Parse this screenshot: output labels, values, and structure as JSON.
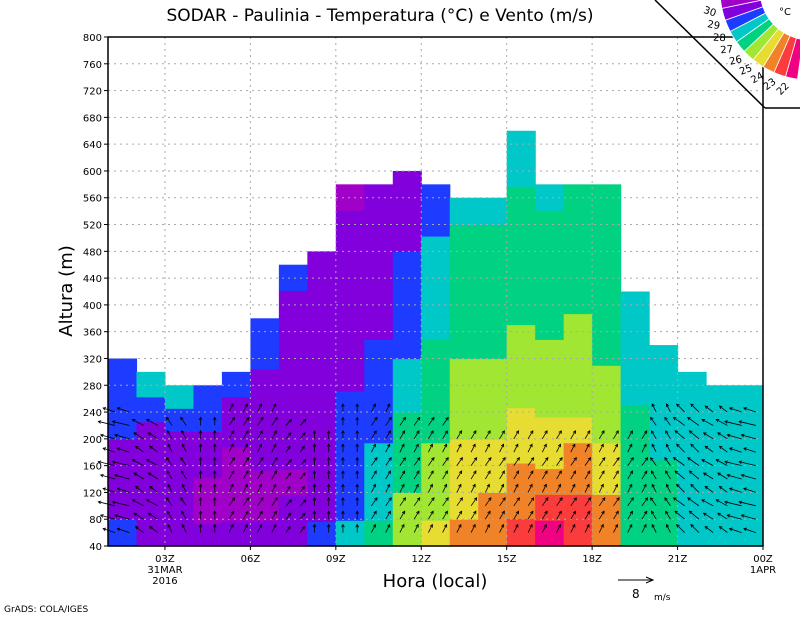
{
  "chart_data": {
    "type": "heatmap",
    "title": "SODAR - Paulinia - Temperatura (°C) e Vento (m/s)",
    "xlabel": "Hora (local)",
    "ylabel": "Altura (m)",
    "ylim": [
      40,
      800
    ],
    "xlim_hours": [
      1,
      24
    ],
    "yticks": [
      "40",
      "80",
      "120",
      "160",
      "200",
      "240",
      "280",
      "320",
      "360",
      "400",
      "440",
      "480",
      "520",
      "560",
      "600",
      "640",
      "680",
      "720",
      "760",
      "800"
    ],
    "xticks": [
      {
        "hour": 3,
        "label": "03Z",
        "sub1": "31MAR",
        "sub2": "2016"
      },
      {
        "hour": 6,
        "label": "06Z"
      },
      {
        "hour": 9,
        "label": "09Z"
      },
      {
        "hour": 12,
        "label": "12Z"
      },
      {
        "hour": 15,
        "label": "15Z"
      },
      {
        "hour": 18,
        "label": "18Z"
      },
      {
        "hour": 21,
        "label": "21Z"
      },
      {
        "hour": 24,
        "label": "00Z",
        "sub1": "1APR"
      }
    ],
    "grid": true,
    "legend": {
      "unit": "°C",
      "position": "top-right",
      "levels": [
        "22",
        "23",
        "24",
        "25",
        "26",
        "27",
        "28",
        "29",
        "30"
      ],
      "colors": [
        "#a000c8",
        "#8200dc",
        "#1e3cff",
        "#00c8c8",
        "#00d282",
        "#a0e632",
        "#e6dc32",
        "#f08228",
        "#fa3c3c",
        "#f00082"
      ]
    },
    "columns": [
      {
        "start": 1,
        "top": 320,
        "temp": [
          23.5,
          22.5,
          22.5,
          22.8,
          23,
          23.3,
          23.6
        ]
      },
      {
        "start": 2,
        "top": 300,
        "temp": [
          22.8,
          22.3,
          22.3,
          22.5,
          22.8,
          23.3,
          24.2
        ]
      },
      {
        "start": 3,
        "top": 280,
        "temp": [
          22.5,
          22,
          22,
          22.2,
          22.6,
          23.3,
          24.2
        ]
      },
      {
        "start": 4,
        "top": 280,
        "temp": [
          22.2,
          21.8,
          21.8,
          22,
          22.3,
          23,
          23.5
        ]
      },
      {
        "start": 5,
        "top": 300,
        "temp": [
          22,
          21.6,
          21.6,
          21.8,
          22,
          22.5,
          23.2
        ]
      },
      {
        "start": 6,
        "top": 380,
        "temp": [
          22,
          21.7,
          21.8,
          22,
          22.3,
          22.6,
          22.8,
          23.2,
          23.5
        ]
      },
      {
        "start": 7,
        "top": 460,
        "temp": [
          22.5,
          22,
          21.9,
          22,
          22.3,
          22.5,
          22.6,
          22.7,
          22.7,
          22.8,
          23
        ]
      },
      {
        "start": 8,
        "top": 480,
        "temp": [
          23.2,
          22.8,
          22.6,
          22.5,
          22.5,
          22.5,
          22.5,
          22.5,
          22.5,
          22.6,
          22.7,
          22.8
        ]
      },
      {
        "start": 9,
        "top": 580,
        "temp": [
          24.2,
          23.8,
          23.5,
          23.2,
          23.1,
          23,
          22.8,
          22.7,
          22.5,
          22.4,
          22.3,
          22.2,
          22,
          21.9
        ]
      },
      {
        "start": 10,
        "top": 580,
        "temp": [
          25.2,
          24.8,
          24.5,
          24.2,
          23.8,
          23.5,
          23.2,
          23,
          22.8,
          22.6,
          22.4,
          22.2,
          22.1,
          22
        ]
      },
      {
        "start": 11,
        "top": 600,
        "temp": [
          26.3,
          26,
          25.7,
          25.3,
          25,
          24.5,
          24,
          23.7,
          23.4,
          23.2,
          23,
          22.8,
          22.6,
          22.4
        ]
      },
      {
        "start": 12,
        "top": 580,
        "temp": [
          27.2,
          26.8,
          26.5,
          26.2,
          25.9,
          25.5,
          25.2,
          25,
          24.8,
          24.6,
          24.4,
          24.2,
          23.8,
          23.5
        ]
      },
      {
        "start": 13,
        "top": 560,
        "temp": [
          28.2,
          27.8,
          27.4,
          27,
          26.8,
          26.5,
          26.2,
          25.9,
          25.6,
          25.4,
          25.2,
          25,
          24.8
        ]
      },
      {
        "start": 14,
        "top": 560,
        "temp": [
          28.6,
          28.2,
          27.8,
          27.2,
          26.8,
          26.5,
          26.2,
          25.9,
          25.7,
          25.5,
          25.3,
          25.1,
          24.9
        ]
      },
      {
        "start": 15,
        "top": 660,
        "temp": [
          29.2,
          28.8,
          28.2,
          27.6,
          27.1,
          26.7,
          26.4,
          26,
          25.7,
          25.5,
          25.3,
          25.1,
          25,
          24.8,
          24.5
        ]
      },
      {
        "start": 16,
        "top": 580,
        "temp": [
          30.3,
          29.5,
          28.5,
          27.6,
          27.2,
          26.8,
          26.4,
          26,
          25.8,
          25.6,
          25.4,
          25.2,
          25,
          24.8
        ]
      },
      {
        "start": 17,
        "top": 580,
        "temp": [
          29.5,
          29,
          28.6,
          28,
          27.3,
          26.9,
          26.6,
          26.3,
          26,
          25.8,
          25.6,
          25.4,
          25.2,
          25
        ]
      },
      {
        "start": 18,
        "top": 580,
        "temp": [
          28.5,
          28.2,
          27.8,
          27.3,
          26.7,
          26.3,
          26,
          25.8,
          25.7,
          25.6,
          25.5,
          25.3,
          25.2,
          25
        ]
      },
      {
        "start": 19,
        "top": 420,
        "temp": [
          25.8,
          25.6,
          25.4,
          25.2,
          25,
          24.8,
          24.7,
          24.6,
          24.5
        ]
      },
      {
        "start": 20,
        "top": 340,
        "temp": [
          25.4,
          25.2,
          25,
          24.8,
          24.7,
          24.6,
          24.4
        ]
      },
      {
        "start": 21,
        "top": 300,
        "temp": [
          24.6,
          24.5,
          24.4,
          24.4,
          24.4,
          24.3,
          24.2
        ]
      },
      {
        "start": 22,
        "top": 280,
        "temp": [
          24.4,
          24.3,
          24.3,
          24.2,
          24.2,
          24.5
        ]
      },
      {
        "start": 23,
        "top": 280,
        "temp": [
          24.2,
          24.3,
          24.3,
          24.2,
          24.1,
          24.1
        ]
      }
    ],
    "wind": {
      "top": [
        240,
        230,
        230,
        230,
        240,
        250,
        220,
        200,
        240,
        240,
        220,
        220,
        200,
        200,
        200,
        200,
        200,
        200,
        200,
        250,
        250,
        240,
        240
      ],
      "u": [
        -3,
        -2,
        -1,
        0,
        1,
        1,
        1,
        0,
        0,
        1,
        1,
        1,
        1,
        1,
        1,
        1,
        1,
        1,
        1,
        -1,
        -2,
        -2,
        -3
      ],
      "v": [
        2,
        3,
        4,
        4,
        4,
        4,
        3,
        4,
        4,
        4,
        4,
        4,
        4,
        4,
        4,
        4,
        4,
        4,
        4,
        4,
        4,
        3,
        2
      ]
    },
    "reference_vector": {
      "value": "8",
      "unit": "m/s"
    },
    "credit": "GrADS: COLA/IGES"
  }
}
